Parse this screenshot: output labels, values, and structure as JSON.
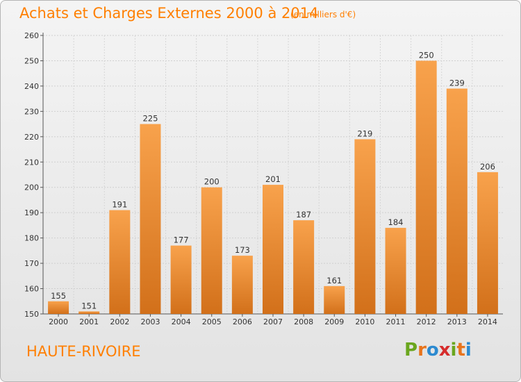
{
  "header": {
    "title": "Achats et Charges Externes 2000 à 2014",
    "subtitle": "(en milliers d'€)"
  },
  "footer": {
    "place": "HAUTE-RIVOIRE",
    "logo": [
      "P",
      "r",
      "o",
      "x",
      "i",
      "t",
      "i"
    ]
  },
  "colors": {
    "bar_top": "#f8a24c",
    "bar_bottom": "#d2701a",
    "title": "#ff7f00",
    "logo": [
      "#6aa61e",
      "#e8741c",
      "#2c8ad0",
      "#d62c2c",
      "#6aa61e",
      "#e8741c",
      "#2c8ad0"
    ]
  },
  "chart_data": {
    "type": "bar",
    "categories": [
      "2000",
      "2001",
      "2002",
      "2003",
      "2004",
      "2005",
      "2006",
      "2007",
      "2008",
      "2009",
      "2010",
      "2011",
      "2012",
      "2013",
      "2014"
    ],
    "values": [
      155,
      151,
      191,
      225,
      177,
      200,
      173,
      201,
      187,
      161,
      219,
      184,
      250,
      239,
      206
    ],
    "title": "Achats et Charges Externes 2000 à 2014",
    "subtitle": "(en milliers d'€)",
    "ylim": [
      150,
      260
    ],
    "yticks": [
      150,
      160,
      170,
      180,
      190,
      200,
      210,
      220,
      230,
      240,
      250,
      260
    ],
    "grid": true,
    "legend": "none"
  }
}
